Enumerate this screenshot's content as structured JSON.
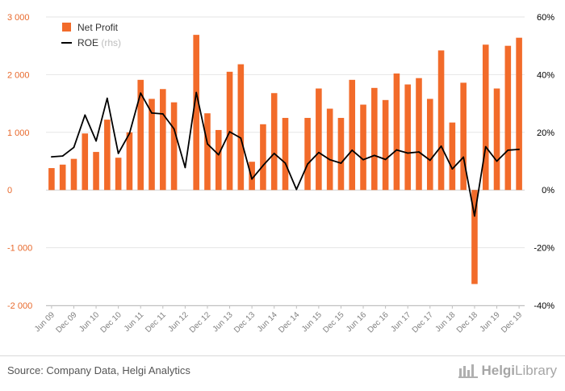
{
  "chart_data": {
    "type": "bar",
    "categories": [
      "Jun 09",
      "Sep 09",
      "Dec 09",
      "Mar 10",
      "Jun 10",
      "Sep 10",
      "Dec 10",
      "Mar 11",
      "Jun 11",
      "Sep 11",
      "Dec 11",
      "Mar 12",
      "Jun 12",
      "Sep 12",
      "Dec 12",
      "Mar 13",
      "Jun 13",
      "Sep 13",
      "Dec 13",
      "Mar 14",
      "Jun 14",
      "Sep 14",
      "Dec 14",
      "Mar 15",
      "Jun 15",
      "Sep 15",
      "Dec 15",
      "Mar 16",
      "Jun 16",
      "Sep 16",
      "Dec 16",
      "Mar 17",
      "Jun 17",
      "Sep 17",
      "Dec 17",
      "Mar 18",
      "Jun 18",
      "Sep 18",
      "Dec 18",
      "Mar 19",
      "Jun 19",
      "Sep 19",
      "Dec 19"
    ],
    "x_tick_labels": [
      "Jun 09",
      "Dec 09",
      "Jun 10",
      "Dec 10",
      "Jun 11",
      "Dec 11",
      "Jun 12",
      "Dec 12",
      "Jun 13",
      "Dec 13",
      "Jun 14",
      "Dec 14",
      "Jun 15",
      "Dec 15",
      "Jun 16",
      "Dec 16",
      "Jun 17",
      "Dec 17",
      "Jun 18",
      "Dec 18",
      "Jun 19",
      "Dec 19"
    ],
    "series": [
      {
        "name": "Net Profit",
        "axis": "left",
        "kind": "bar",
        "values": [
          380,
          440,
          540,
          980,
          660,
          1220,
          560,
          1000,
          1910,
          1580,
          1750,
          1520,
          null,
          2690,
          1330,
          1040,
          2050,
          2180,
          490,
          1140,
          1680,
          1250,
          null,
          1250,
          1760,
          1410,
          1250,
          1910,
          1480,
          1770,
          1560,
          2020,
          1830,
          1940,
          1580,
          2420,
          1170,
          1860,
          -1630,
          2520,
          1760,
          2500,
          2640
        ]
      },
      {
        "name": "ROE",
        "axis": "right",
        "kind": "line",
        "values": [
          11.5,
          11.8,
          14.8,
          26.0,
          17.0,
          31.8,
          12.7,
          19.6,
          33.6,
          26.7,
          26.4,
          21.2,
          7.8,
          33.8,
          16.0,
          12.2,
          20.2,
          18.0,
          3.8,
          8.5,
          12.7,
          9.3,
          0.2,
          9.0,
          13.0,
          10.5,
          9.3,
          13.8,
          10.5,
          12.0,
          10.6,
          13.9,
          12.8,
          13.2,
          10.3,
          15.2,
          7.3,
          11.4,
          -9.0,
          15.0,
          10.0,
          13.8,
          14.1
        ]
      }
    ],
    "legend": [
      {
        "label": "Net Profit",
        "suffix": ""
      },
      {
        "label": "ROE",
        "suffix": " (rhs)"
      }
    ],
    "left_axis": {
      "min": -2000,
      "max": 3000,
      "ticks": [
        -2000,
        -1000,
        0,
        1000,
        2000,
        3000
      ],
      "tick_labels": [
        "-2 000",
        "-1 000",
        "0",
        "1 000",
        "2 000",
        "3 000"
      ]
    },
    "right_axis": {
      "min": -40,
      "max": 60,
      "ticks": [
        -40,
        -20,
        0,
        20,
        40,
        60
      ],
      "tick_labels": [
        "-40%",
        "-20%",
        "0%",
        "20%",
        "40%",
        "60%"
      ]
    },
    "colors": {
      "bar": "#f26b2a",
      "line": "#000000",
      "axis_text_left": "#e8692c"
    }
  },
  "footer": {
    "source": "Source: Company Data, Helgi Analytics",
    "brand_bold": "Helgi",
    "brand_light": "Library"
  }
}
